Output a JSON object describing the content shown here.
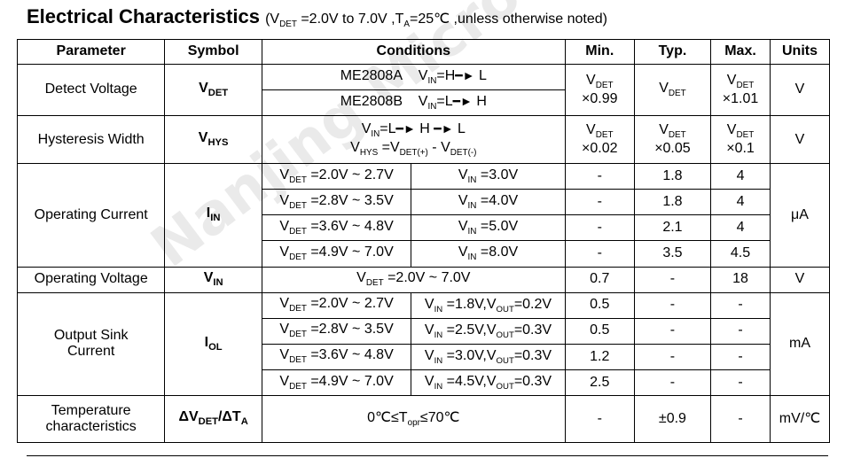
{
  "title": {
    "main": "Electrical Characteristics",
    "note_open": "(V",
    "note_sub": "DET",
    "note_mid": " =2.0V to 7.0V ,T",
    "note_sub2": "A",
    "note_end": "=25℃ ,unless otherwise noted)"
  },
  "headers": {
    "parameter": "Parameter",
    "symbol": "Symbol",
    "conditions": "Conditions",
    "min": "Min.",
    "typ": "Typ.",
    "max": "Max.",
    "units": "Units"
  },
  "rows": {
    "detect": {
      "parameter": "Detect Voltage",
      "symbol": "V",
      "symbol_sub": "DET",
      "cond1_model": "ME2808A",
      "cond1": "V",
      "cond1_sub": "IN",
      "cond1_rest": "=H",
      "cond1_to": "L",
      "cond2_model": "ME2808B",
      "cond2": "V",
      "cond2_sub": "IN",
      "cond2_rest": "=L",
      "cond2_to": "H",
      "min_a": "V",
      "min_a_sub": "DET",
      "min_b": "×0.99",
      "typ_a": "V",
      "typ_a_sub": "DET",
      "max_a": "V",
      "max_a_sub": "DET",
      "max_b": "×1.01",
      "units": "V"
    },
    "hyst": {
      "parameter": "Hysteresis Width",
      "symbol": "V",
      "symbol_sub": "HYS",
      "cond1": "V",
      "cond1_sub": "IN",
      "cond1_rest": "=L",
      "cond1_mid": "H",
      "cond1_to": "L",
      "cond2": "V",
      "cond2_sub": "HYS",
      "cond2_rest": " =V",
      "cond2_sub2": "DET(+)",
      "cond2_rest2": " - V",
      "cond2_sub3": "DET(-)",
      "min_a": "V",
      "min_a_sub": "DET",
      "min_b": "×0.02",
      "typ_a": "V",
      "typ_a_sub": "DET",
      "typ_b": "×0.05",
      "max_a": "V",
      "max_a_sub": "DET",
      "max_b": "×0.1",
      "units": "V"
    },
    "opcur": {
      "parameter": "Operating Current",
      "symbol": "I",
      "symbol_sub": "IN",
      "units": "μA",
      "lines": [
        {
          "c1": "V",
          "c1_sub": "DET",
          "c1_rest": " =2.0V ~ 2.7V",
          "c2": "V",
          "c2_sub": "IN",
          "c2_rest": " =3.0V",
          "min": "-",
          "typ": "1.8",
          "max": "4"
        },
        {
          "c1": "V",
          "c1_sub": "DET",
          "c1_rest": " =2.8V ~ 3.5V",
          "c2": "V",
          "c2_sub": "IN",
          "c2_rest": " =4.0V",
          "min": "-",
          "typ": "1.8",
          "max": "4"
        },
        {
          "c1": "V",
          "c1_sub": "DET",
          "c1_rest": " =3.6V ~ 4.8V",
          "c2": "V",
          "c2_sub": "IN",
          "c2_rest": " =5.0V",
          "min": "-",
          "typ": "2.1",
          "max": "4"
        },
        {
          "c1": "V",
          "c1_sub": "DET",
          "c1_rest": " =4.9V ~ 7.0V",
          "c2": "V",
          "c2_sub": "IN",
          "c2_rest": " =8.0V",
          "min": "-",
          "typ": "3.5",
          "max": "4.5"
        }
      ]
    },
    "opvolt": {
      "parameter": "Operating Voltage",
      "symbol": "V",
      "symbol_sub": "IN",
      "c1": "V",
      "c1_sub": "DET",
      "c1_rest": " =2.0V ~ 7.0V",
      "min": "0.7",
      "typ": "-",
      "max": "18",
      "units": "V"
    },
    "sink": {
      "parameter_l1": "Output Sink",
      "parameter_l2": "Current",
      "symbol": "I",
      "symbol_sub": "OL",
      "units": "mA",
      "lines": [
        {
          "c1": "V",
          "c1_sub": "DET",
          "c1_rest": " =2.0V ~ 2.7V",
          "c2": "V",
          "c2_sub": "IN",
          "c2_rest": " =1.8V,V",
          "c2_sub2": "OUT",
          "c2_rest2": "=0.2V",
          "min": "0.5",
          "typ": "-",
          "max": "-"
        },
        {
          "c1": "V",
          "c1_sub": "DET",
          "c1_rest": " =2.8V ~ 3.5V",
          "c2": "V",
          "c2_sub": "IN",
          "c2_rest": " =2.5V,V",
          "c2_sub2": "OUT",
          "c2_rest2": "=0.3V",
          "min": "0.5",
          "typ": "-",
          "max": "-"
        },
        {
          "c1": "V",
          "c1_sub": "DET",
          "c1_rest": " =3.6V ~ 4.8V",
          "c2": "V",
          "c2_sub": "IN",
          "c2_rest": " =3.0V,V",
          "c2_sub2": "OUT",
          "c2_rest2": "=0.3V",
          "min": "1.2",
          "typ": "-",
          "max": "-"
        },
        {
          "c1": "V",
          "c1_sub": "DET",
          "c1_rest": " =4.9V ~ 7.0V",
          "c2": "V",
          "c2_sub": "IN",
          "c2_rest": " =4.5V,V",
          "c2_sub2": "OUT",
          "c2_rest2": "=0.3V",
          "min": "2.5",
          "typ": "-",
          "max": "-"
        }
      ]
    },
    "temp": {
      "parameter_l1": "Temperature",
      "parameter_l2": "characteristics",
      "symbol_a": "ΔV",
      "symbol_a_sub": "DET",
      "symbol_b": "/ΔT",
      "symbol_b_sub": "A",
      "cond": "0℃≤T",
      "cond_sub": "opr",
      "cond_rest": "≤70℃",
      "min": "-",
      "typ": "±0.9",
      "max": "-",
      "units": "mV/℃"
    }
  },
  "watermark": "Nanjing Micro One Electronics"
}
